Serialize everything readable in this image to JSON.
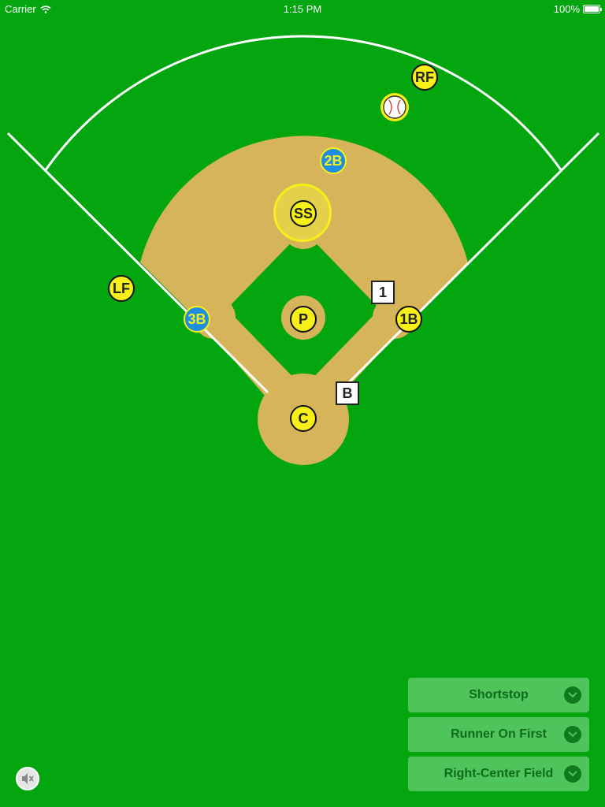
{
  "status_bar": {
    "carrier": "Carrier",
    "time": "1:15 PM",
    "battery": "100%"
  },
  "field": {
    "colors": {
      "grass": "#03a60f",
      "dirt": "#d6b55a",
      "lines": "#ffffff",
      "defense_player": "#f7f018",
      "runner": "#1f8ee0"
    }
  },
  "players": {
    "rf": "RF",
    "second_base_runner": "2B",
    "ss": "SS",
    "lf": "LF",
    "third_base_runner": "3B",
    "p": "P",
    "first_base": "1B",
    "c": "C"
  },
  "base_markers": {
    "first": "1",
    "batter": "B"
  },
  "controls": {
    "selector_1": "Shortstop",
    "selector_2": "Runner On First",
    "selector_3": "Right-Center Field"
  },
  "icons": {
    "ball": "baseball-icon",
    "mute": "speaker-muted-icon",
    "chevron": "chevron-down-icon"
  }
}
